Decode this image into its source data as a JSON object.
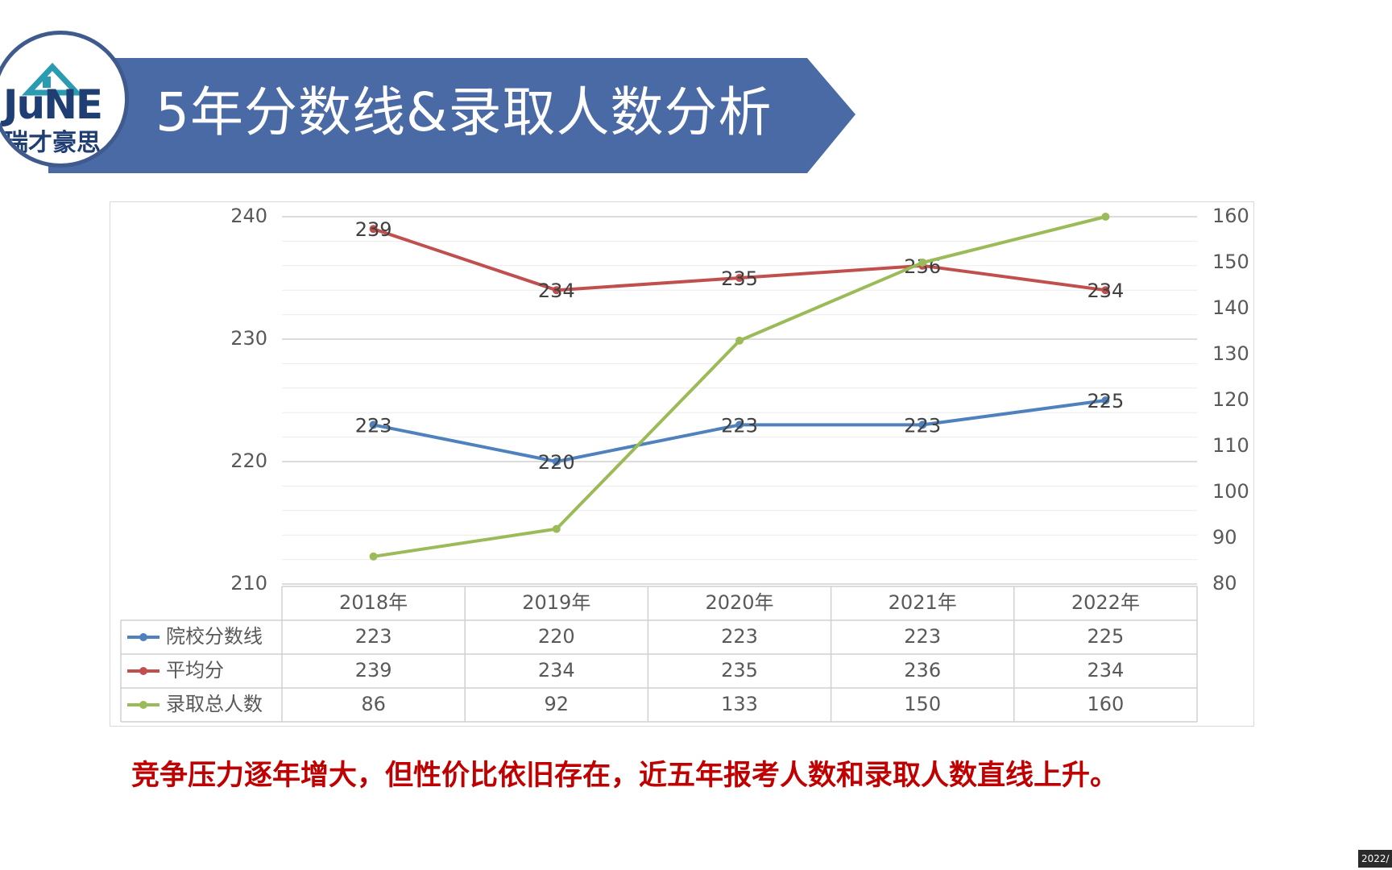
{
  "slide": {
    "title": "5年分数线&录取人数分析",
    "conclusion": "竞争压力逐年增大，但性价比依旧存在，近五年报考人数和录取人数直线上升。",
    "logo": {
      "top_text": "JuNE",
      "bottom_text": "瑞才豪思"
    },
    "date_tag": "2022/",
    "colors": {
      "banner": "#4a6aa5",
      "logo_ring": "#3f5b8e",
      "conclusion": "#c00000"
    }
  },
  "chart_data": {
    "type": "line",
    "categories": [
      "2018年",
      "2019年",
      "2020年",
      "2021年",
      "2022年"
    ],
    "series": [
      {
        "name": "院校分数线",
        "axis": "left",
        "color": "#4f81bd",
        "values": [
          223,
          220,
          223,
          223,
          225
        ],
        "show_labels": true
      },
      {
        "name": "平均分",
        "axis": "left",
        "color": "#c0504d",
        "values": [
          239,
          234,
          235,
          236,
          234
        ],
        "show_labels": true
      },
      {
        "name": "录取总人数",
        "axis": "right",
        "color": "#9bbb59",
        "values": [
          86,
          92,
          133,
          150,
          160
        ],
        "show_labels": false
      }
    ],
    "y_left": {
      "min": 210,
      "max": 240,
      "ticks": [
        210,
        220,
        230,
        240
      ]
    },
    "y_right": {
      "min": 80,
      "max": 160,
      "ticks": [
        80,
        90,
        100,
        110,
        120,
        130,
        140,
        150,
        160
      ]
    },
    "grid": true,
    "data_table": true,
    "legend": "data-table"
  }
}
